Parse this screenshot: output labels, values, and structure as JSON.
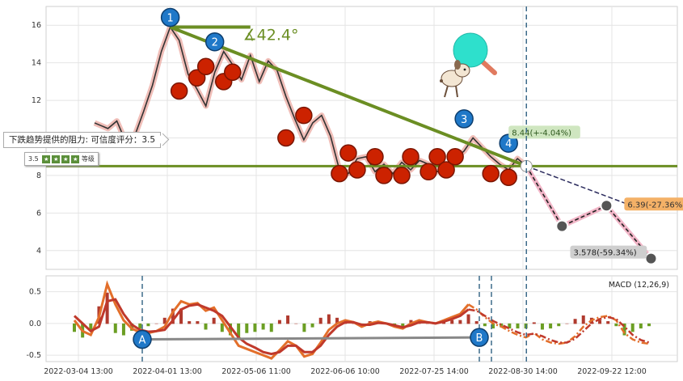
{
  "chart_data": [
    {
      "type": "line",
      "panel": "price",
      "ylim": [
        3.0,
        17.0
      ],
      "yticks": [
        4,
        6,
        8,
        10,
        12,
        14,
        16
      ],
      "xticks": [
        "2022-03-04 13:00",
        "2022-04-01 13:00",
        "2022-05-06 11:00",
        "2022-06-06 10:00",
        "2022-07-25 14:00",
        "2022-08-30 14:00",
        "2022-09-22 12:00"
      ],
      "grid": true,
      "price_series": [
        [
          0,
          10.8
        ],
        [
          3,
          10.5
        ],
        [
          5,
          10.9
        ],
        [
          7,
          9.8
        ],
        [
          9,
          10.1
        ],
        [
          11,
          11.4
        ],
        [
          13,
          12.8
        ],
        [
          15,
          14.6
        ],
        [
          17,
          15.9
        ],
        [
          19,
          15.2
        ],
        [
          21,
          13.4
        ],
        [
          23,
          12.6
        ],
        [
          25,
          11.7
        ],
        [
          27,
          13.5
        ],
        [
          29,
          14.6
        ],
        [
          31,
          13.9
        ],
        [
          33,
          13.1
        ],
        [
          35,
          14.4
        ],
        [
          37,
          13.0
        ],
        [
          39,
          14.1
        ],
        [
          41,
          13.6
        ],
        [
          43,
          12.2
        ],
        [
          45,
          11.0
        ],
        [
          47,
          9.9
        ],
        [
          49,
          10.8
        ],
        [
          51,
          11.2
        ],
        [
          53,
          10.1
        ],
        [
          55,
          8.3
        ],
        [
          57,
          8.1
        ],
        [
          59,
          8.9
        ],
        [
          61,
          9.0
        ],
        [
          63,
          8.2
        ],
        [
          65,
          8.6
        ],
        [
          67,
          8.1
        ],
        [
          69,
          8.7
        ],
        [
          71,
          8.3
        ],
        [
          73,
          8.8
        ],
        [
          75,
          8.6
        ],
        [
          77,
          8.2
        ],
        [
          79,
          8.3
        ],
        [
          81,
          8.9
        ],
        [
          83,
          9.3
        ],
        [
          85,
          10.0
        ],
        [
          87,
          9.5
        ],
        [
          89,
          9.0
        ],
        [
          91,
          8.6
        ],
        [
          93,
          8.3
        ],
        [
          95,
          8.9
        ],
        [
          97,
          8.5
        ]
      ],
      "support_level": 8.5,
      "resistance_line": {
        "from": [
          17,
          15.9
        ],
        "to": [
          97,
          8.5
        ]
      },
      "angle_label": "∡42.4°",
      "pivot_labels": [
        {
          "label": "1",
          "x": 17,
          "y": 15.9
        },
        {
          "label": "2",
          "x": 27,
          "y": 14.6
        },
        {
          "label": "3",
          "x": 83,
          "y": 10.5
        },
        {
          "label": "4",
          "x": 93,
          "y": 9.2
        }
      ],
      "projection": {
        "start": [
          97,
          8.5
        ],
        "points": [
          {
            "x": 105,
            "y": 5.3
          },
          {
            "x": 115,
            "y": 6.39,
            "label": "6.39(-27.36%)"
          },
          {
            "x": 125,
            "y": 3.578,
            "label": "3.578(-59.34%)"
          }
        ],
        "target_label": "8.44(+-4.04%)"
      },
      "notes": {
        "resistance": "下跌趋势提供的阻力: 可信度评分：3.5",
        "rating": "3.5",
        "rating_tail": "等级"
      }
    },
    {
      "type": "line",
      "panel": "macd",
      "title": "MACD (12,26,9)",
      "ylim": [
        -0.6,
        0.75
      ],
      "yticks": [
        0.5,
        0.0,
        -0.5
      ],
      "markers": [
        {
          "label": "A",
          "x": 20,
          "y": -0.25
        },
        {
          "label": "B",
          "x": 94,
          "y": -0.22
        }
      ],
      "series": [
        {
          "role": "macd",
          "color": "#e36f2a",
          "values": [
            0.05,
            -0.12,
            -0.18,
            0.1,
            0.62,
            0.3,
            0.05,
            -0.08,
            -0.14,
            -0.15,
            -0.12,
            -0.05,
            0.18,
            0.35,
            0.3,
            0.32,
            0.2,
            0.25,
            0.05,
            -0.15,
            -0.35,
            -0.4,
            -0.45,
            -0.5,
            -0.55,
            -0.42,
            -0.28,
            -0.35,
            -0.52,
            -0.48,
            -0.3,
            -0.1,
            0.0,
            0.05,
            0.02,
            -0.05,
            0.0,
            0.03,
            0.0,
            -0.05,
            -0.08,
            0.0,
            0.05,
            0.02,
            0.0,
            0.05,
            0.1,
            0.15,
            0.3,
            0.22,
            0.1,
            0.0,
            -0.05,
            -0.12,
            -0.18,
            -0.22,
            -0.15,
            -0.25,
            -0.3,
            -0.32,
            -0.3,
            -0.2,
            -0.05,
            0.05,
            0.1,
            0.12,
            0.05,
            -0.15,
            -0.25,
            -0.3,
            -0.32
          ]
        },
        {
          "role": "signal",
          "color": "#c0392b",
          "values": [
            0.12,
            0.0,
            -0.12,
            -0.05,
            0.35,
            0.38,
            0.15,
            -0.02,
            -0.1,
            -0.13,
            -0.12,
            -0.1,
            0.05,
            0.22,
            0.28,
            0.3,
            0.25,
            0.2,
            0.12,
            -0.05,
            -0.22,
            -0.32,
            -0.38,
            -0.45,
            -0.48,
            -0.45,
            -0.35,
            -0.35,
            -0.45,
            -0.45,
            -0.35,
            -0.18,
            -0.05,
            0.02,
            0.02,
            -0.02,
            -0.02,
            0.01,
            0.0,
            -0.03,
            -0.06,
            -0.03,
            0.02,
            0.02,
            0.0,
            0.03,
            0.07,
            0.12,
            0.22,
            0.2,
            0.12,
            0.04,
            -0.02,
            -0.08,
            -0.14,
            -0.18,
            -0.16,
            -0.2,
            -0.26,
            -0.3,
            -0.3,
            -0.24,
            -0.12,
            0.0,
            0.07,
            0.1,
            0.07,
            -0.05,
            -0.18,
            -0.26,
            -0.3
          ]
        }
      ]
    }
  ]
}
